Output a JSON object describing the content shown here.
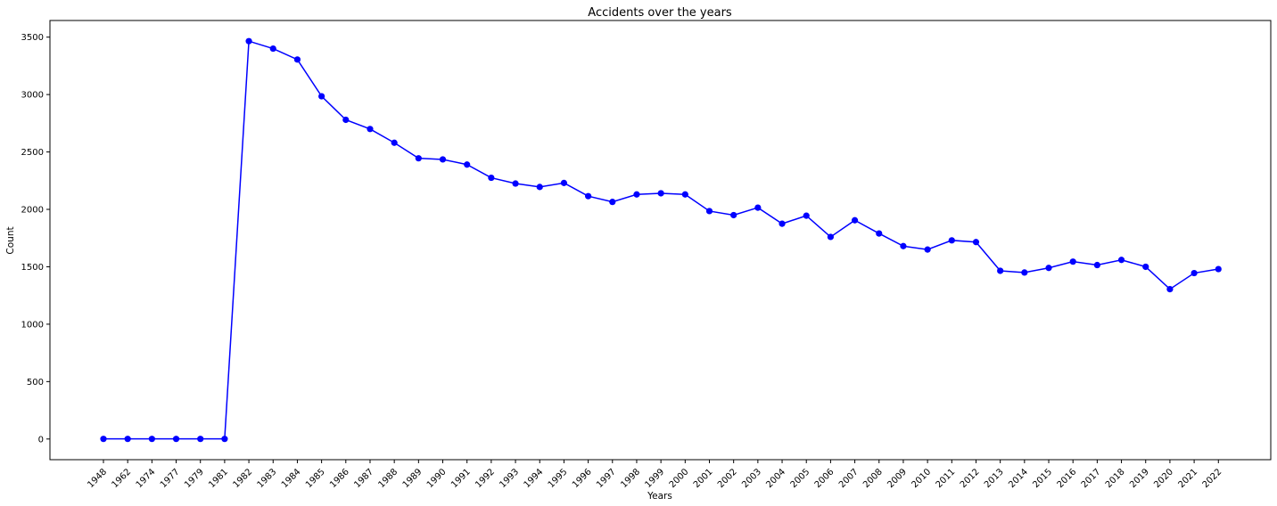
{
  "chart_data": {
    "type": "line",
    "title": "Accidents over the years",
    "xlabel": "Years",
    "ylabel": "Count",
    "categories": [
      "1948",
      "1962",
      "1974",
      "1977",
      "1979",
      "1981",
      "1982",
      "1983",
      "1984",
      "1985",
      "1986",
      "1987",
      "1988",
      "1989",
      "1990",
      "1991",
      "1992",
      "1993",
      "1994",
      "1995",
      "1996",
      "1997",
      "1998",
      "1999",
      "2000",
      "2001",
      "2002",
      "2003",
      "2004",
      "2005",
      "2006",
      "2007",
      "2008",
      "2009",
      "2010",
      "2011",
      "2012",
      "2013",
      "2014",
      "2015",
      "2016",
      "2017",
      "2018",
      "2019",
      "2020",
      "2021",
      "2022"
    ],
    "series": [
      {
        "values": [
          1,
          1,
          1,
          1,
          1,
          1,
          3465,
          3400,
          3305,
          2985,
          2780,
          2700,
          2580,
          2445,
          2435,
          2390,
          2275,
          2225,
          2195,
          2230,
          2115,
          2065,
          2130,
          2140,
          2130,
          1985,
          1950,
          2015,
          1875,
          1945,
          1760,
          1905,
          1790,
          1680,
          1650,
          1730,
          1715,
          1465,
          1450,
          1490,
          1545,
          1515,
          1560,
          1500,
          1305,
          1445,
          1480
        ],
        "color": "#0000ff"
      }
    ],
    "ylim": [
      -180,
      3645
    ],
    "yticks": [
      0,
      500,
      1000,
      1500,
      2000,
      2500,
      3000,
      3500
    ],
    "grid": false
  }
}
